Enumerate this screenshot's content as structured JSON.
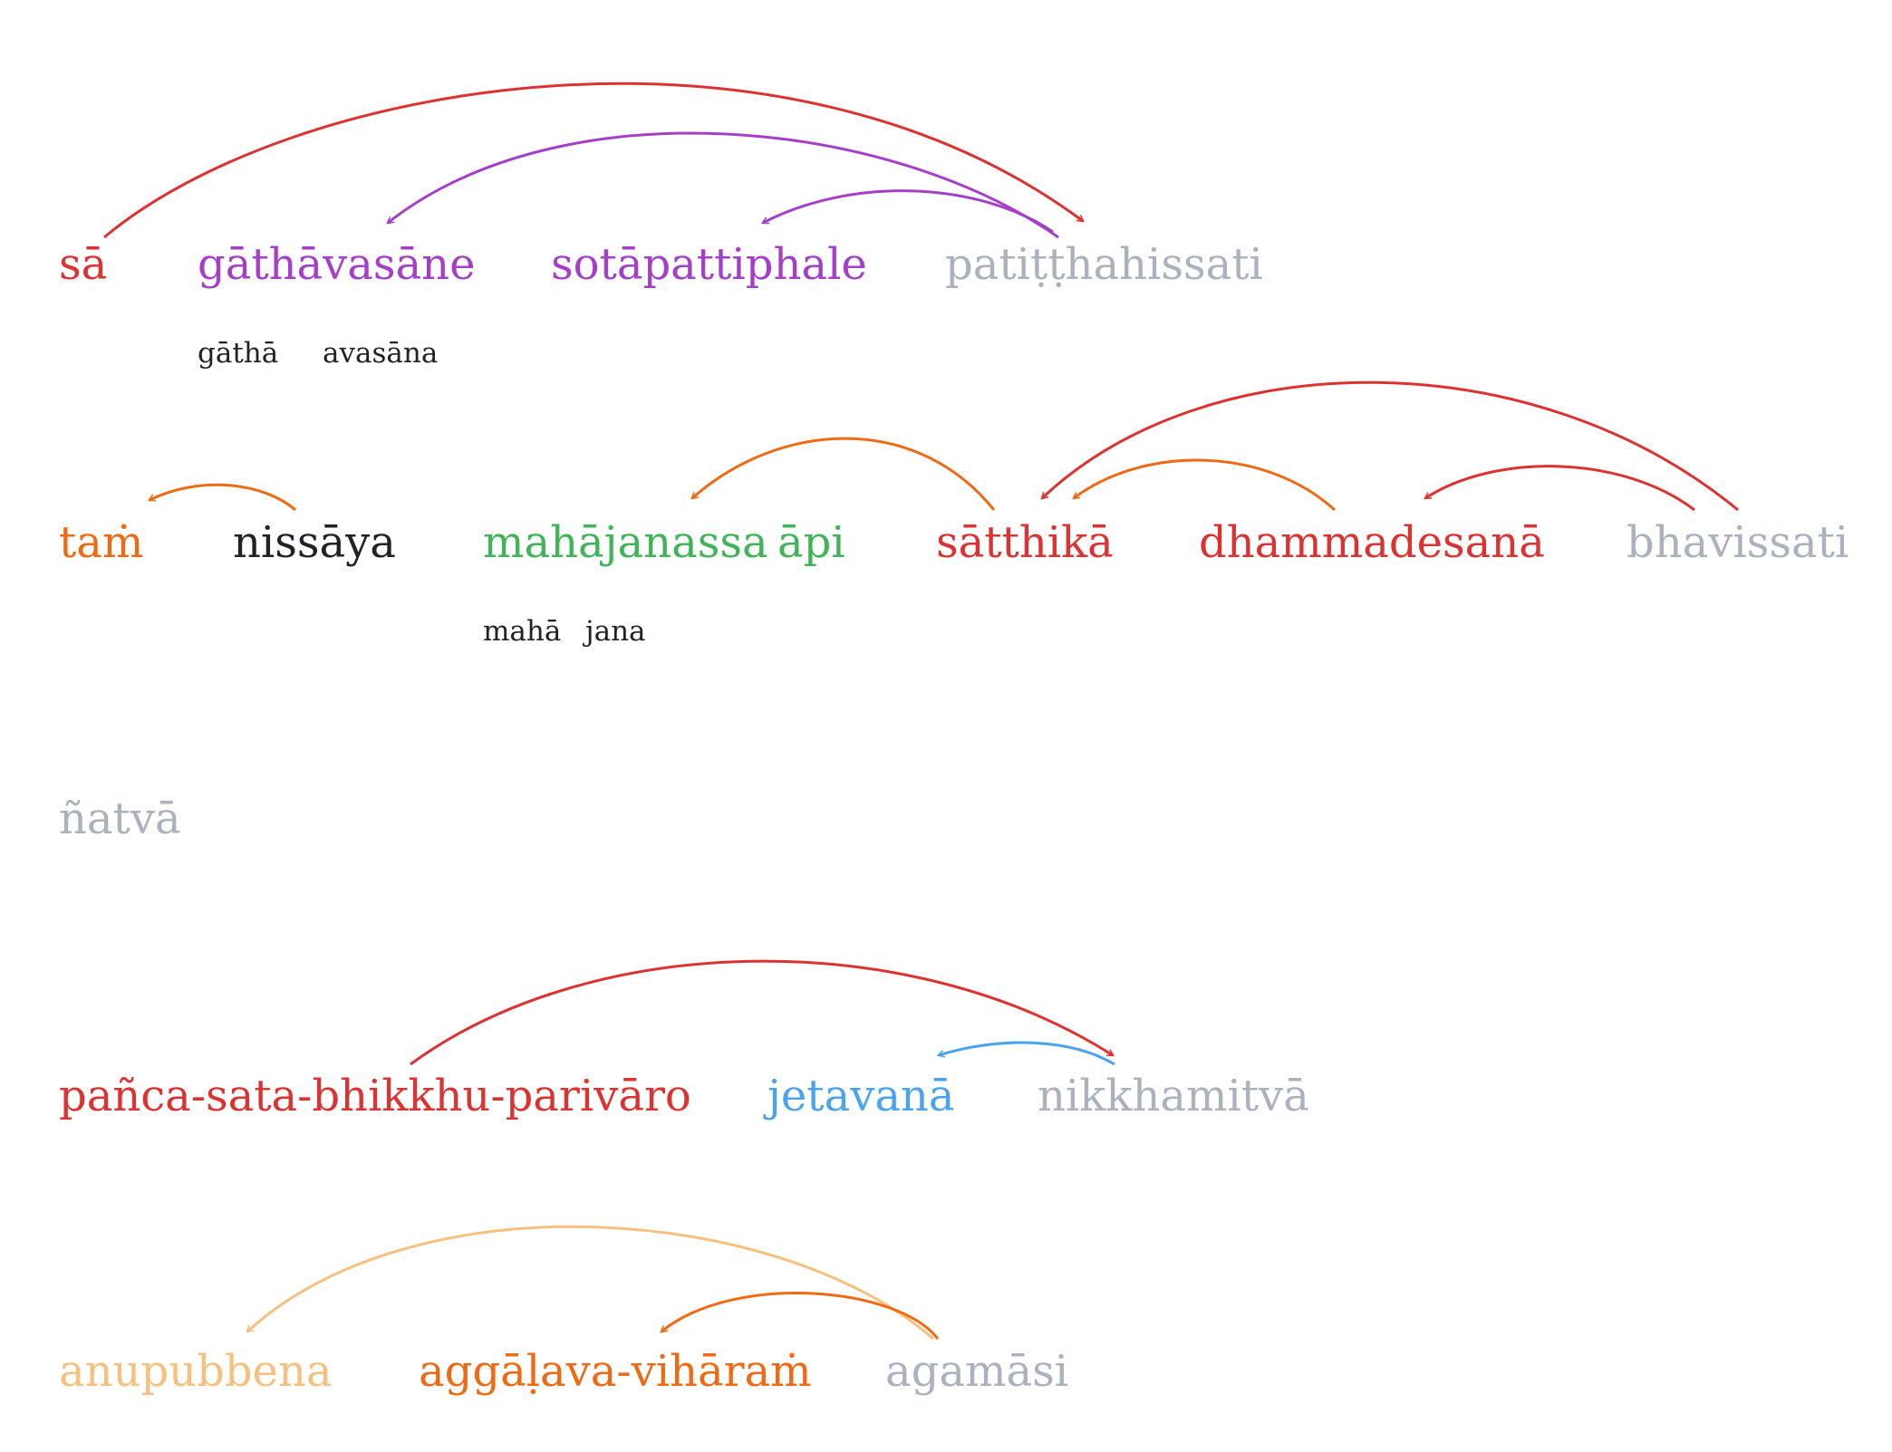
{
  "colors": {
    "red": "#dc3232",
    "purple": "#a63fc8",
    "gray": "#aab2bd",
    "orange": "#ef6a14",
    "black": "#1f2328",
    "green": "#40b458",
    "blue": "#4aa3ef",
    "light_orange": "#f8c07e"
  },
  "sentences": [
    {
      "words": [
        {
          "text": "sā",
          "color": "red"
        },
        {
          "text": "gāthāvasāne",
          "color": "purple",
          "parts": [
            "gāthā",
            "avasāna"
          ]
        },
        {
          "text": "sotāpattiphale",
          "color": "purple"
        },
        {
          "text": "patiṭṭhahissati",
          "color": "gray"
        }
      ],
      "arcs": [
        {
          "from": 0,
          "to": 3,
          "color": "red"
        },
        {
          "from": 3,
          "to": 1,
          "color": "purple"
        },
        {
          "from": 3,
          "to": 2,
          "color": "purple"
        }
      ]
    },
    {
      "words": [
        {
          "text": "taṁ",
          "color": "orange"
        },
        {
          "text": "nissāya",
          "color": "black"
        },
        {
          "text": "mahājanassa",
          "color": "green",
          "parts": [
            "mahā",
            "jana"
          ]
        },
        {
          "text": "āpi",
          "color": "green"
        },
        {
          "text": "sātthikā",
          "color": "red"
        },
        {
          "text": "dhammadesanā",
          "color": "red"
        },
        {
          "text": "bhavissati",
          "color": "gray"
        }
      ],
      "arcs": [
        {
          "from": 1,
          "to": 0,
          "color": "orange"
        },
        {
          "from": 4,
          "to": 2,
          "color": "orange"
        },
        {
          "from": 6,
          "to": 4,
          "color": "red"
        },
        {
          "from": 5,
          "to": 4,
          "color": "orange"
        },
        {
          "from": 6,
          "to": 5,
          "color": "red"
        }
      ]
    },
    {
      "words": [
        {
          "text": "ñatvā",
          "color": "gray"
        }
      ],
      "arcs": []
    },
    {
      "words": [
        {
          "text": "pañca-sata-bhikkhu-parivāro",
          "color": "red"
        },
        {
          "text": "jetavanā",
          "color": "blue"
        },
        {
          "text": "nikkhamitvā",
          "color": "gray"
        }
      ],
      "arcs": [
        {
          "from": 0,
          "to": 2,
          "color": "red"
        },
        {
          "from": 2,
          "to": 1,
          "color": "blue"
        }
      ]
    },
    {
      "words": [
        {
          "text": "anupubbena",
          "color": "light_orange"
        },
        {
          "text": "aggāḷava-vihāraṁ",
          "color": "orange"
        },
        {
          "text": "agamāsi",
          "color": "gray"
        }
      ],
      "arcs": [
        {
          "from": 2,
          "to": 0,
          "color": "light_orange"
        },
        {
          "from": 2,
          "to": 1,
          "color": "orange"
        }
      ]
    }
  ]
}
